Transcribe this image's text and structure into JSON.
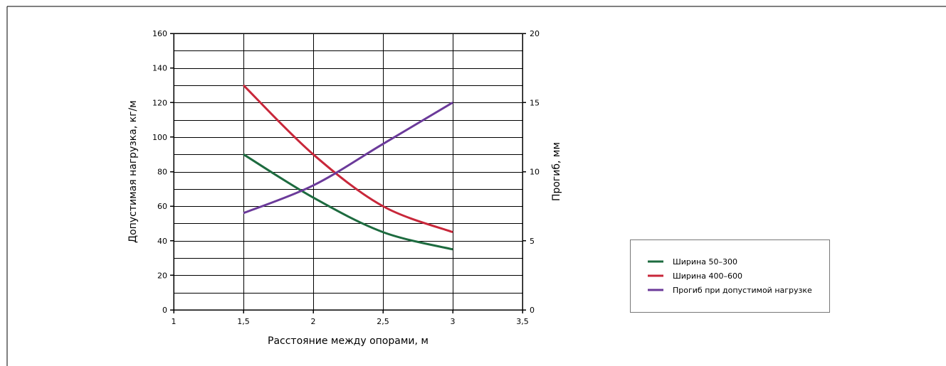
{
  "chart_data": {
    "type": "line",
    "title": "",
    "xlabel": "Расстояние между опорами, м",
    "ylabel": "Допустимая нагрузка, кг/м",
    "y2label": "Прогиб, мм",
    "xlim": [
      1,
      3.5
    ],
    "ylim": [
      0,
      160
    ],
    "y2lim": [
      0,
      20
    ],
    "x_ticks": [
      1,
      1.5,
      2,
      2.5,
      3,
      3.5
    ],
    "x_tick_labels": [
      "1",
      "1,5",
      "2",
      "2,5",
      "3",
      "3,5"
    ],
    "y_ticks": [
      0,
      20,
      40,
      60,
      80,
      100,
      120,
      140,
      160
    ],
    "y_tick_labels": [
      "0",
      "20",
      "40",
      "60",
      "80",
      "100",
      "120",
      "140",
      "160"
    ],
    "y2_ticks": [
      0,
      5,
      10,
      15,
      20
    ],
    "y2_tick_labels": [
      "0",
      "5",
      "10",
      "15",
      "20"
    ],
    "grid": true,
    "legend_position": "right",
    "series": [
      {
        "name": "Ширина 50–300",
        "axis": "left",
        "color": "#1d6b3f",
        "x": [
          1.5,
          2,
          2.5,
          3
        ],
        "values": [
          90,
          65,
          45,
          35
        ]
      },
      {
        "name": "Ширина 400–600",
        "axis": "left",
        "color": "#c8273a",
        "x": [
          1.5,
          2,
          2.5,
          3
        ],
        "values": [
          130,
          90,
          60,
          45
        ]
      },
      {
        "name": "Прогиб при допустимой нагрузке",
        "axis": "right",
        "color": "#6b3a9a",
        "x": [
          1.5,
          2,
          2.5,
          3
        ],
        "values": [
          7,
          9,
          12,
          15
        ]
      }
    ]
  }
}
